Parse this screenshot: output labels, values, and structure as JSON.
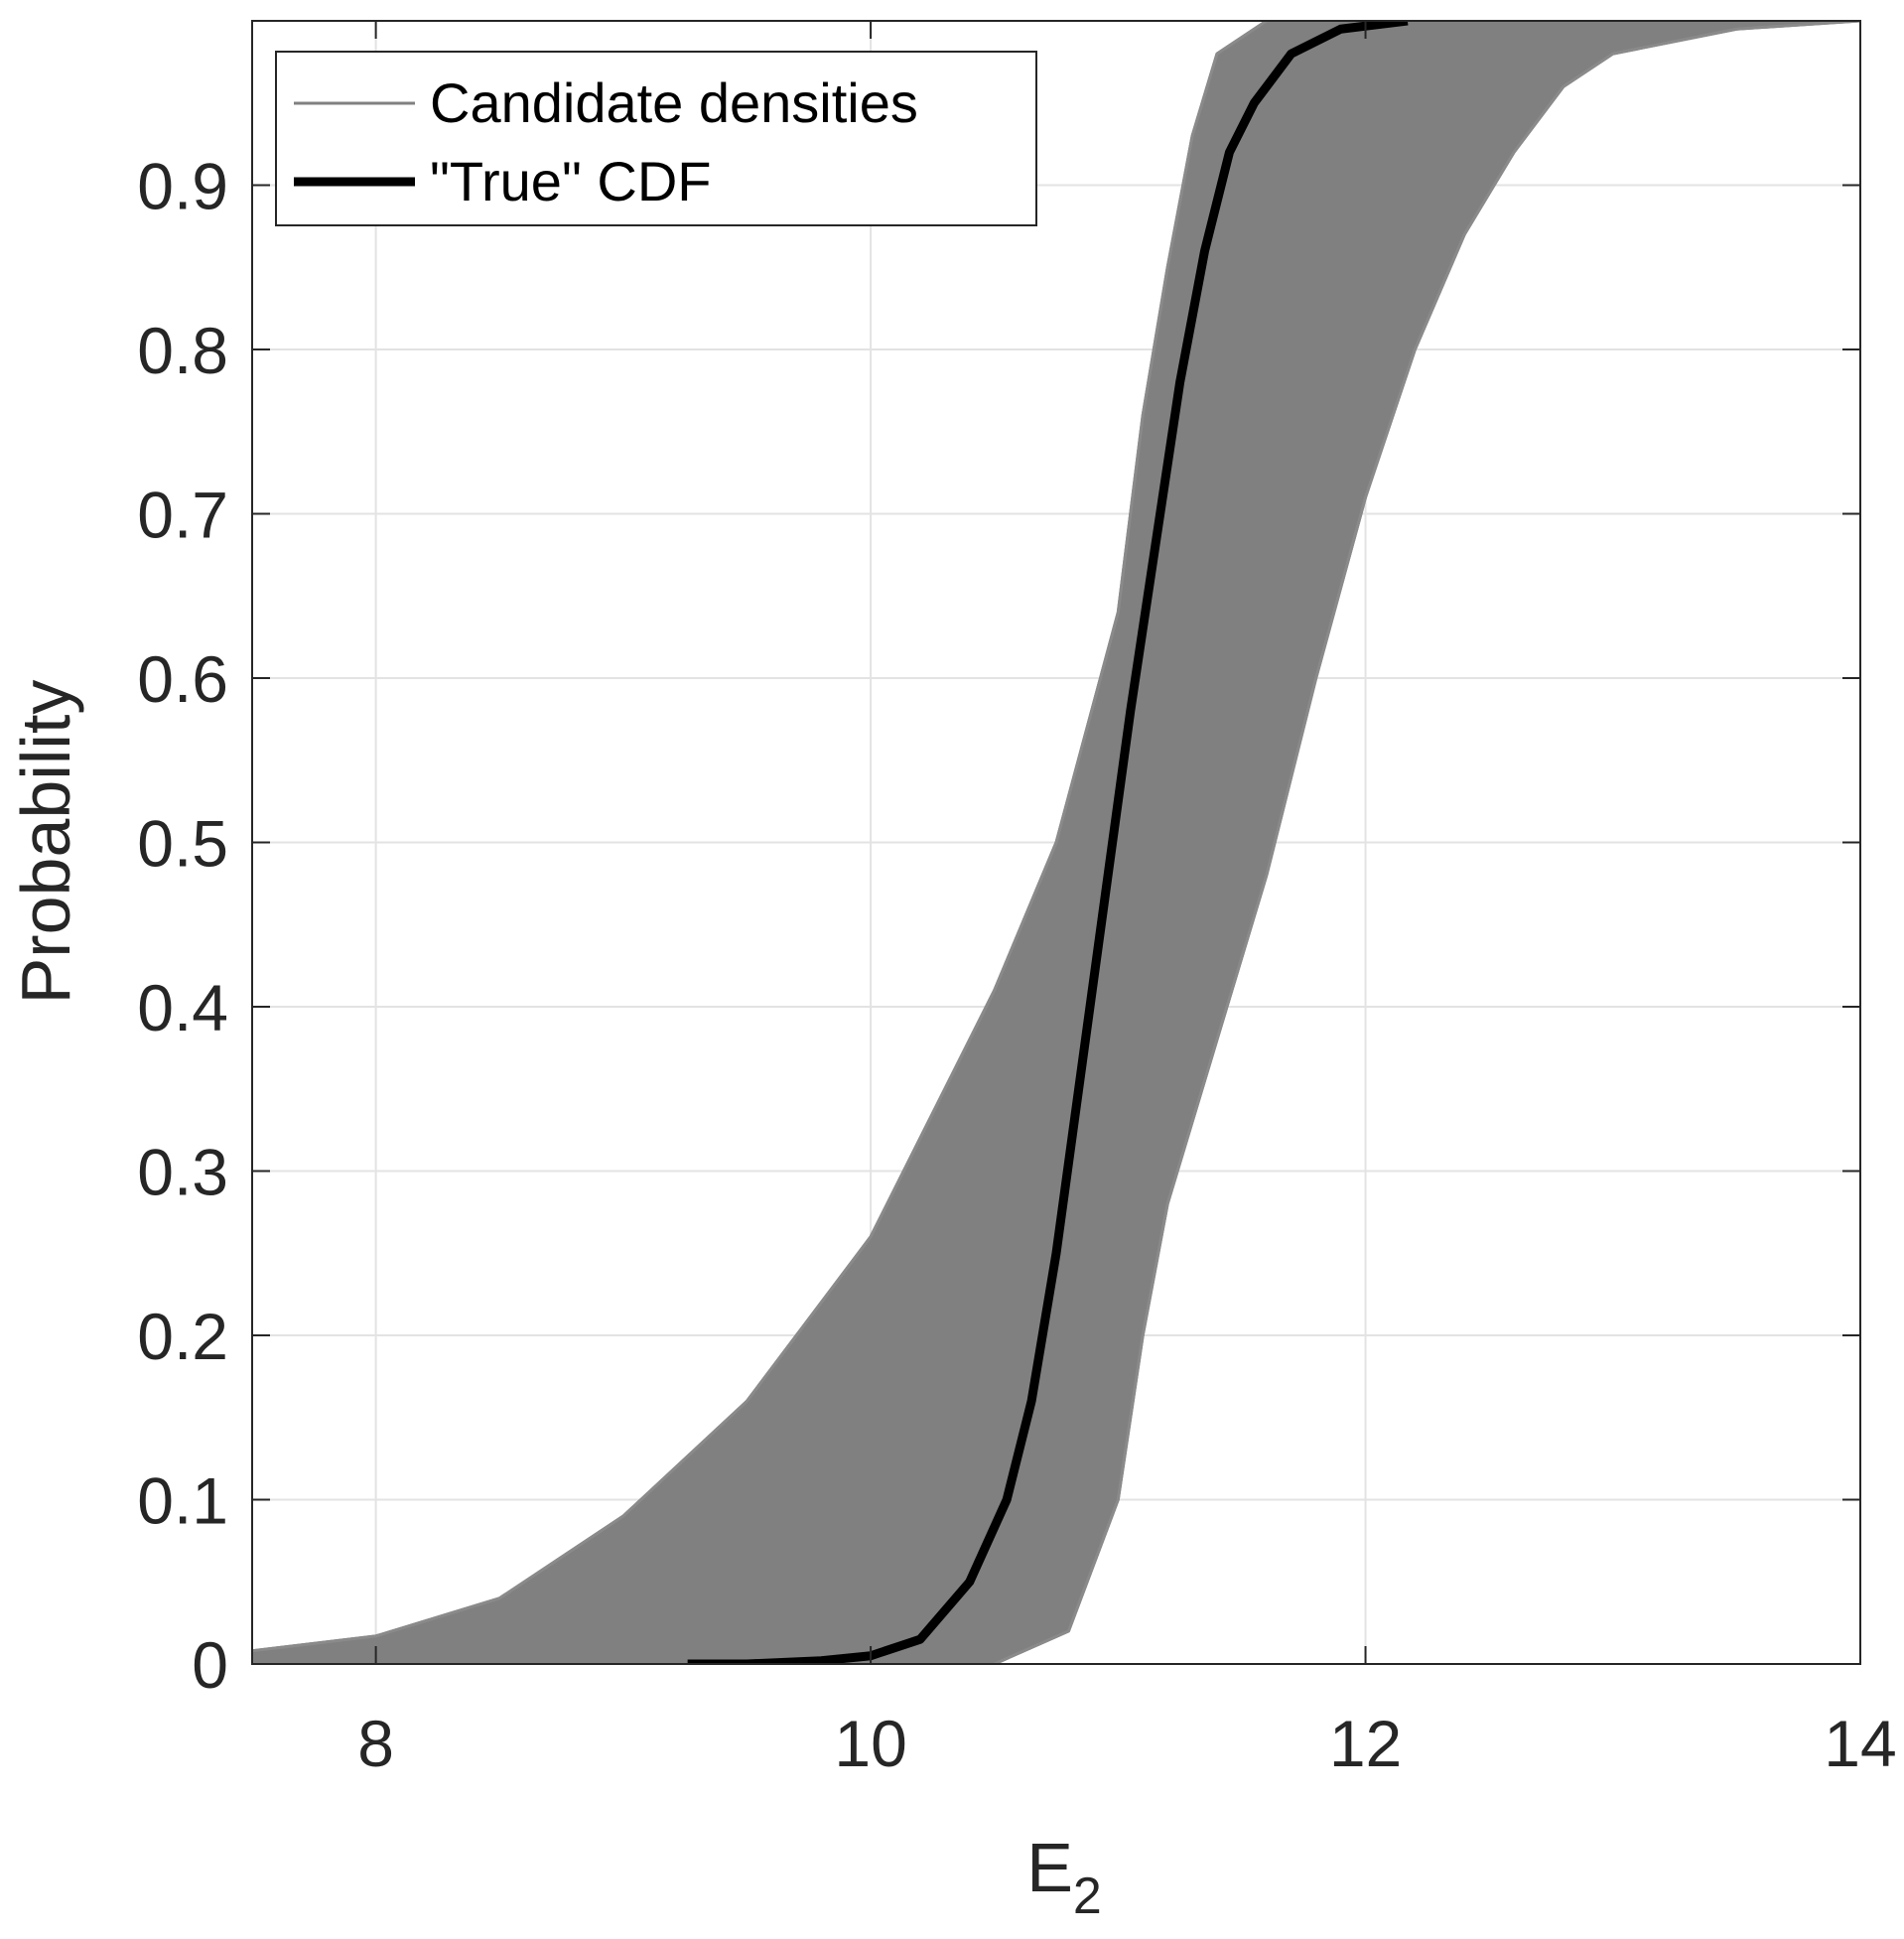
{
  "chart_data": {
    "type": "line",
    "title": "",
    "xlabel": "E",
    "xlabel_subscript": "2",
    "ylabel": "Probability",
    "xlim": [
      7.5,
      14
    ],
    "ylim": [
      0,
      1
    ],
    "xticks": [
      8,
      10,
      12,
      14
    ],
    "yticks": [
      0,
      0.1,
      0.2,
      0.3,
      0.4,
      0.5,
      0.6,
      0.7,
      0.8,
      0.9
    ],
    "grid": true,
    "legend_position": "top-left",
    "series": [
      {
        "name": "Candidate densities",
        "color": "#808080",
        "kind": "band",
        "left_edge": [
          [
            7.5,
            0.008
          ],
          [
            8.0,
            0.017
          ],
          [
            8.5,
            0.04
          ],
          [
            9.0,
            0.09
          ],
          [
            9.5,
            0.16
          ],
          [
            10.0,
            0.26
          ],
          [
            10.5,
            0.41
          ],
          [
            10.75,
            0.5
          ],
          [
            11.0,
            0.64
          ],
          [
            11.1,
            0.76
          ],
          [
            11.2,
            0.85
          ],
          [
            11.3,
            0.93
          ],
          [
            11.4,
            0.98
          ],
          [
            11.6,
            1.0
          ]
        ],
        "right_edge": [
          [
            10.5,
            0.0
          ],
          [
            10.8,
            0.02
          ],
          [
            11.0,
            0.1
          ],
          [
            11.1,
            0.2
          ],
          [
            11.2,
            0.28
          ],
          [
            11.4,
            0.38
          ],
          [
            11.6,
            0.48
          ],
          [
            11.8,
            0.6
          ],
          [
            12.0,
            0.71
          ],
          [
            12.2,
            0.8
          ],
          [
            12.4,
            0.87
          ],
          [
            12.6,
            0.92
          ],
          [
            12.8,
            0.96
          ],
          [
            13.0,
            0.98
          ],
          [
            13.5,
            0.995
          ],
          [
            14.0,
            1.0
          ]
        ]
      },
      {
        "name": "\"True\" CDF",
        "color": "#000000",
        "kind": "line",
        "x": [
          9.26,
          9.5,
          9.8,
          10.0,
          10.2,
          10.4,
          10.55,
          10.65,
          10.75,
          10.85,
          10.95,
          11.05,
          11.15,
          11.25,
          11.35,
          11.45,
          11.55,
          11.7,
          11.9,
          12.17
        ],
        "y": [
          0.0,
          0.0,
          0.002,
          0.005,
          0.015,
          0.05,
          0.1,
          0.16,
          0.25,
          0.36,
          0.47,
          0.58,
          0.68,
          0.78,
          0.86,
          0.92,
          0.95,
          0.98,
          0.995,
          1.0
        ]
      }
    ]
  }
}
